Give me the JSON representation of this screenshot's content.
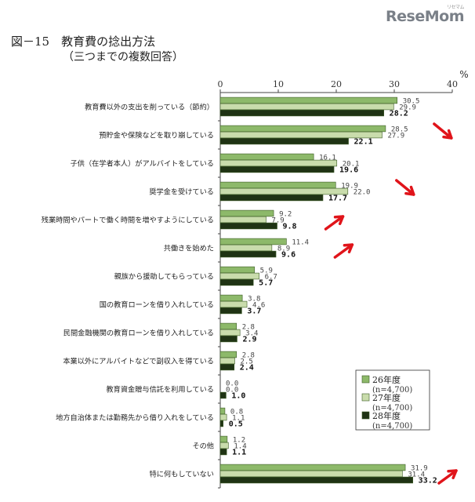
{
  "header": {
    "title": "図－15　教育費の捻出方法",
    "subtitle": "（三つまでの複数回答）",
    "logo_text": "ReseMom",
    "logo_sup": "リセマム"
  },
  "colors": {
    "series_26": "#8db96a",
    "series_27": "#c9dcac",
    "series_28": "#1f3314",
    "arrow": "#e0141a"
  },
  "chart_data": {
    "type": "bar",
    "orientation": "horizontal",
    "unit": "%",
    "xlim": [
      0,
      40
    ],
    "ticks": [
      0,
      10,
      20,
      30,
      40
    ],
    "categories": [
      "教育費以外の支出を削っている（節約）",
      "預貯金や保険などを取り崩している",
      "子供（在学者本人）がアルバイトをしている",
      "奨学金を受けている",
      "残業時間やパートで働く時間を増やすようにしている",
      "共働きを始めた",
      "親族から援助してもらっている",
      "国の教育ローンを借り入れしている",
      "民間金融機関の教育ローンを借り入れしている",
      "本業以外にアルバイトなどで副収入を得ている",
      "教育資金贈与信託を利用している",
      "地方自治体または勤務先から借り入れをしている",
      "その他",
      "特に何もしていない"
    ],
    "series": [
      {
        "name": "26年度",
        "n": "(n=4,700)",
        "values": [
          30.5,
          28.5,
          16.1,
          19.9,
          9.2,
          11.4,
          5.9,
          3.8,
          2.8,
          2.8,
          0.0,
          0.8,
          1.2,
          31.9
        ],
        "labels": [
          "30.5",
          "28.5",
          "16.1",
          "19.9",
          "9.2",
          "11.4",
          "5.9",
          "3.8",
          "2.8",
          "2.8",
          "0.0",
          "0.8",
          "1.2",
          "31.9"
        ]
      },
      {
        "name": "27年度",
        "n": "(n=4,700)",
        "values": [
          29.9,
          27.9,
          20.1,
          22.0,
          7.9,
          8.9,
          6.7,
          4.6,
          3.4,
          2.5,
          0.0,
          1.1,
          1.4,
          31.4
        ],
        "labels": [
          "29.9",
          "27.9",
          "20.1",
          "22.0",
          "7.9",
          "8.9",
          "6.7",
          "4.6",
          "3.4",
          "2.5",
          "0.0",
          "1.1",
          "1.4",
          "31.4"
        ]
      },
      {
        "name": "28年度",
        "n": "(n=4,700)",
        "values": [
          28.2,
          22.1,
          19.6,
          17.7,
          9.8,
          9.6,
          5.7,
          3.7,
          2.9,
          2.4,
          1.0,
          0.5,
          1.1,
          33.2
        ],
        "labels": [
          "28.2",
          "22.1",
          "19.6",
          "17.7",
          "9.8",
          "9.6",
          "5.7",
          "3.7",
          "2.9",
          "2.4",
          "1.0",
          "0.5",
          "1.1",
          "33.2"
        ]
      }
    ],
    "annotations": [
      {
        "category_index": 1,
        "direction": "down"
      },
      {
        "category_index": 3,
        "direction": "down"
      },
      {
        "category_index": 4,
        "direction": "up"
      },
      {
        "category_index": 5,
        "direction": "up"
      },
      {
        "category_index": 13,
        "direction": "up"
      }
    ],
    "legend_position": "right"
  }
}
